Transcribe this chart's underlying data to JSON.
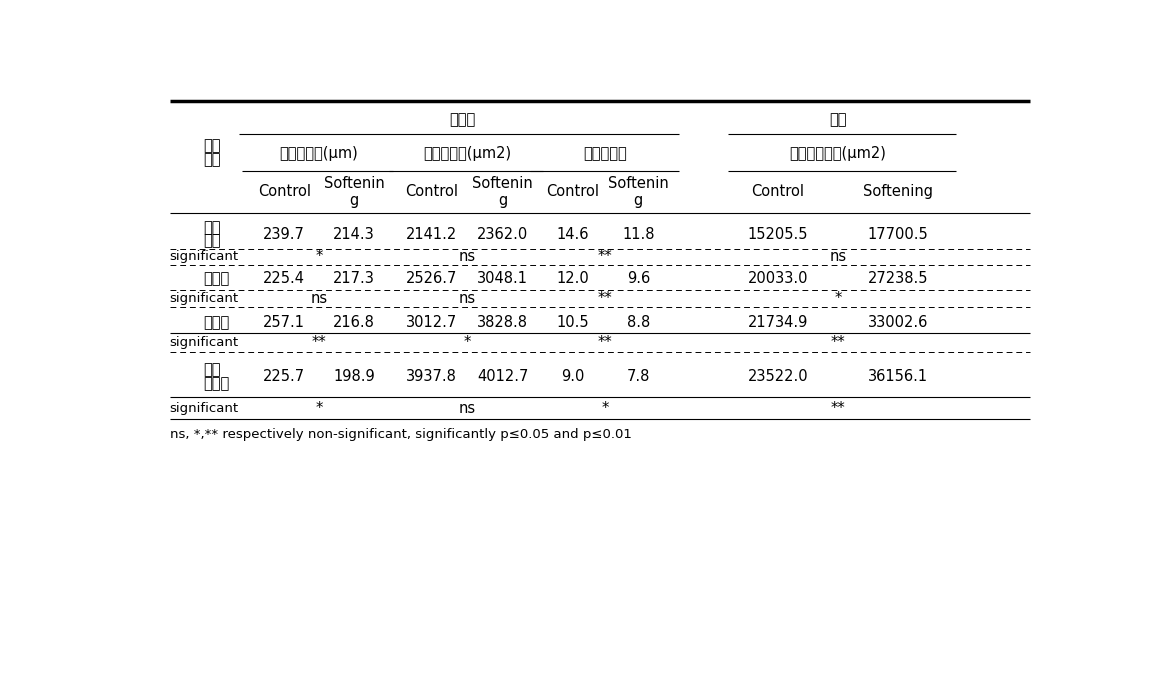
{
  "title_left": "아표피",
  "title_right": "과육",
  "col_groups": [
    {
      "label": "아표피두께(μm)"
    },
    {
      "label": "아표피크기(μm2)"
    },
    {
      "label": "아표피층수"
    },
    {
      "label": "과육세포크기(μm2)"
    }
  ],
  "row_header_line1": "성숙",
  "row_header_line2": "단계",
  "rows": [
    {
      "stage": [
        "변색",
        "이전"
      ],
      "values": [
        "239.7",
        "214.3",
        "2141.2",
        "2362.0",
        "14.6",
        "11.8",
        "15205.5",
        "17700.5"
      ],
      "significant": [
        "*",
        "ns",
        "**",
        "ns"
      ],
      "two_line": true
    },
    {
      "stage": [
        "변색기"
      ],
      "values": [
        "225.4",
        "217.3",
        "2526.7",
        "3048.1",
        "12.0",
        "9.6",
        "20033.0",
        "27238.5"
      ],
      "significant": [
        "ns",
        "ns",
        "**",
        "*"
      ],
      "two_line": false
    },
    {
      "stage": [
        "성숙기"
      ],
      "values": [
        "257.1",
        "216.8",
        "3012.7",
        "3828.8",
        "10.5",
        "8.8",
        "21734.9",
        "33002.6"
      ],
      "significant": [
        "**",
        "*",
        "**",
        "**"
      ],
      "two_line": false
    },
    {
      "stage": [
        "늦은",
        "성숙기"
      ],
      "values": [
        "225.7",
        "198.9",
        "3937.8",
        "4012.7",
        "9.0",
        "7.8",
        "23522.0",
        "36156.1"
      ],
      "significant": [
        "*",
        "ns",
        "*",
        "**"
      ],
      "two_line": true
    }
  ],
  "footnote": "ns, *,** respectively non-significant, significantly p≤0.05 and p≤0.01",
  "background_color": "#ffffff",
  "text_color": "#000000"
}
